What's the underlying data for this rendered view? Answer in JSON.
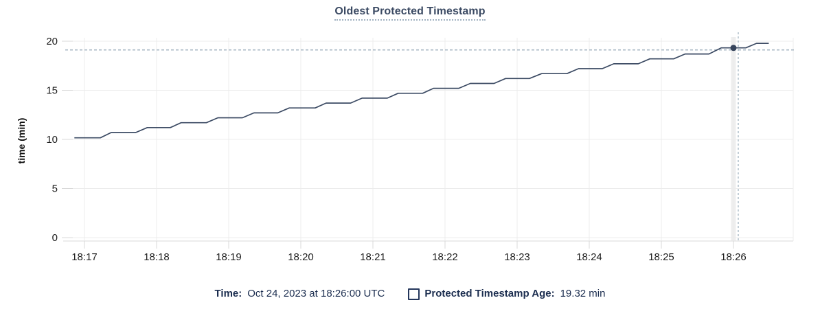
{
  "title": {
    "text": "Oldest Protected Timestamp"
  },
  "chart_data": {
    "type": "line",
    "title": "Oldest Protected Timestamp",
    "xlabel": "",
    "ylabel": "time (min)",
    "ylim": [
      0,
      20
    ],
    "yticks": [
      0,
      5,
      10,
      15,
      20
    ],
    "xticks": [
      {
        "label": "18:17",
        "t": 17
      },
      {
        "label": "18:18",
        "t": 18
      },
      {
        "label": "18:19",
        "t": 19
      },
      {
        "label": "18:20",
        "t": 20
      },
      {
        "label": "18:21",
        "t": 21
      },
      {
        "label": "18:22",
        "t": 22
      },
      {
        "label": "18:23",
        "t": 23
      },
      {
        "label": "18:24",
        "t": 24
      },
      {
        "label": "18:25",
        "t": 25
      },
      {
        "label": "18:26",
        "t": 26
      }
    ],
    "grid": true,
    "legend_position": "bottom",
    "x_unit": "minutes after 18:00 UTC",
    "series": [
      {
        "name": "Protected Timestamp Age",
        "unit": "min",
        "points": [
          [
            16.86,
            10.16
          ],
          [
            17.22,
            10.16
          ],
          [
            17.37,
            10.7
          ],
          [
            17.71,
            10.7
          ],
          [
            17.87,
            11.2
          ],
          [
            18.19,
            11.2
          ],
          [
            18.34,
            11.7
          ],
          [
            18.69,
            11.7
          ],
          [
            18.85,
            12.2
          ],
          [
            19.19,
            12.2
          ],
          [
            19.35,
            12.7
          ],
          [
            19.68,
            12.7
          ],
          [
            19.84,
            13.2
          ],
          [
            20.2,
            13.2
          ],
          [
            20.35,
            13.7
          ],
          [
            20.69,
            13.7
          ],
          [
            20.85,
            14.2
          ],
          [
            21.2,
            14.2
          ],
          [
            21.35,
            14.7
          ],
          [
            21.69,
            14.7
          ],
          [
            21.84,
            15.2
          ],
          [
            22.19,
            15.2
          ],
          [
            22.35,
            15.7
          ],
          [
            22.68,
            15.7
          ],
          [
            22.84,
            16.2
          ],
          [
            23.17,
            16.2
          ],
          [
            23.34,
            16.7
          ],
          [
            23.69,
            16.7
          ],
          [
            23.85,
            17.2
          ],
          [
            24.18,
            17.2
          ],
          [
            24.34,
            17.7
          ],
          [
            24.68,
            17.7
          ],
          [
            24.84,
            18.2
          ],
          [
            25.17,
            18.2
          ],
          [
            25.33,
            18.7
          ],
          [
            25.66,
            18.7
          ],
          [
            25.83,
            19.32
          ],
          [
            26.17,
            19.32
          ],
          [
            26.32,
            19.78
          ],
          [
            26.49,
            19.78
          ]
        ]
      }
    ],
    "hover_point": {
      "t": 26.0,
      "value": 19.32,
      "time_label": "18:26:00"
    }
  },
  "legend": {
    "time_label": "Time:",
    "time_value": "Oct 24, 2023 at 18:26:00 UTC",
    "series_label": "Protected Timestamp Age:",
    "series_value": "19.32 min"
  },
  "colors": {
    "line": "#3b4a63",
    "dot": "#36445c",
    "title": "#3b4a63",
    "legend_text": "#1b2d4f",
    "grid": "#ececec",
    "axis_line": "#e5e5e5",
    "tick_mark": "#d9d9d9",
    "tick_text": "#1c1c1c",
    "crosshair": "#a8b8c4",
    "hover_band": "#eeeeee",
    "background": "#ffffff"
  }
}
